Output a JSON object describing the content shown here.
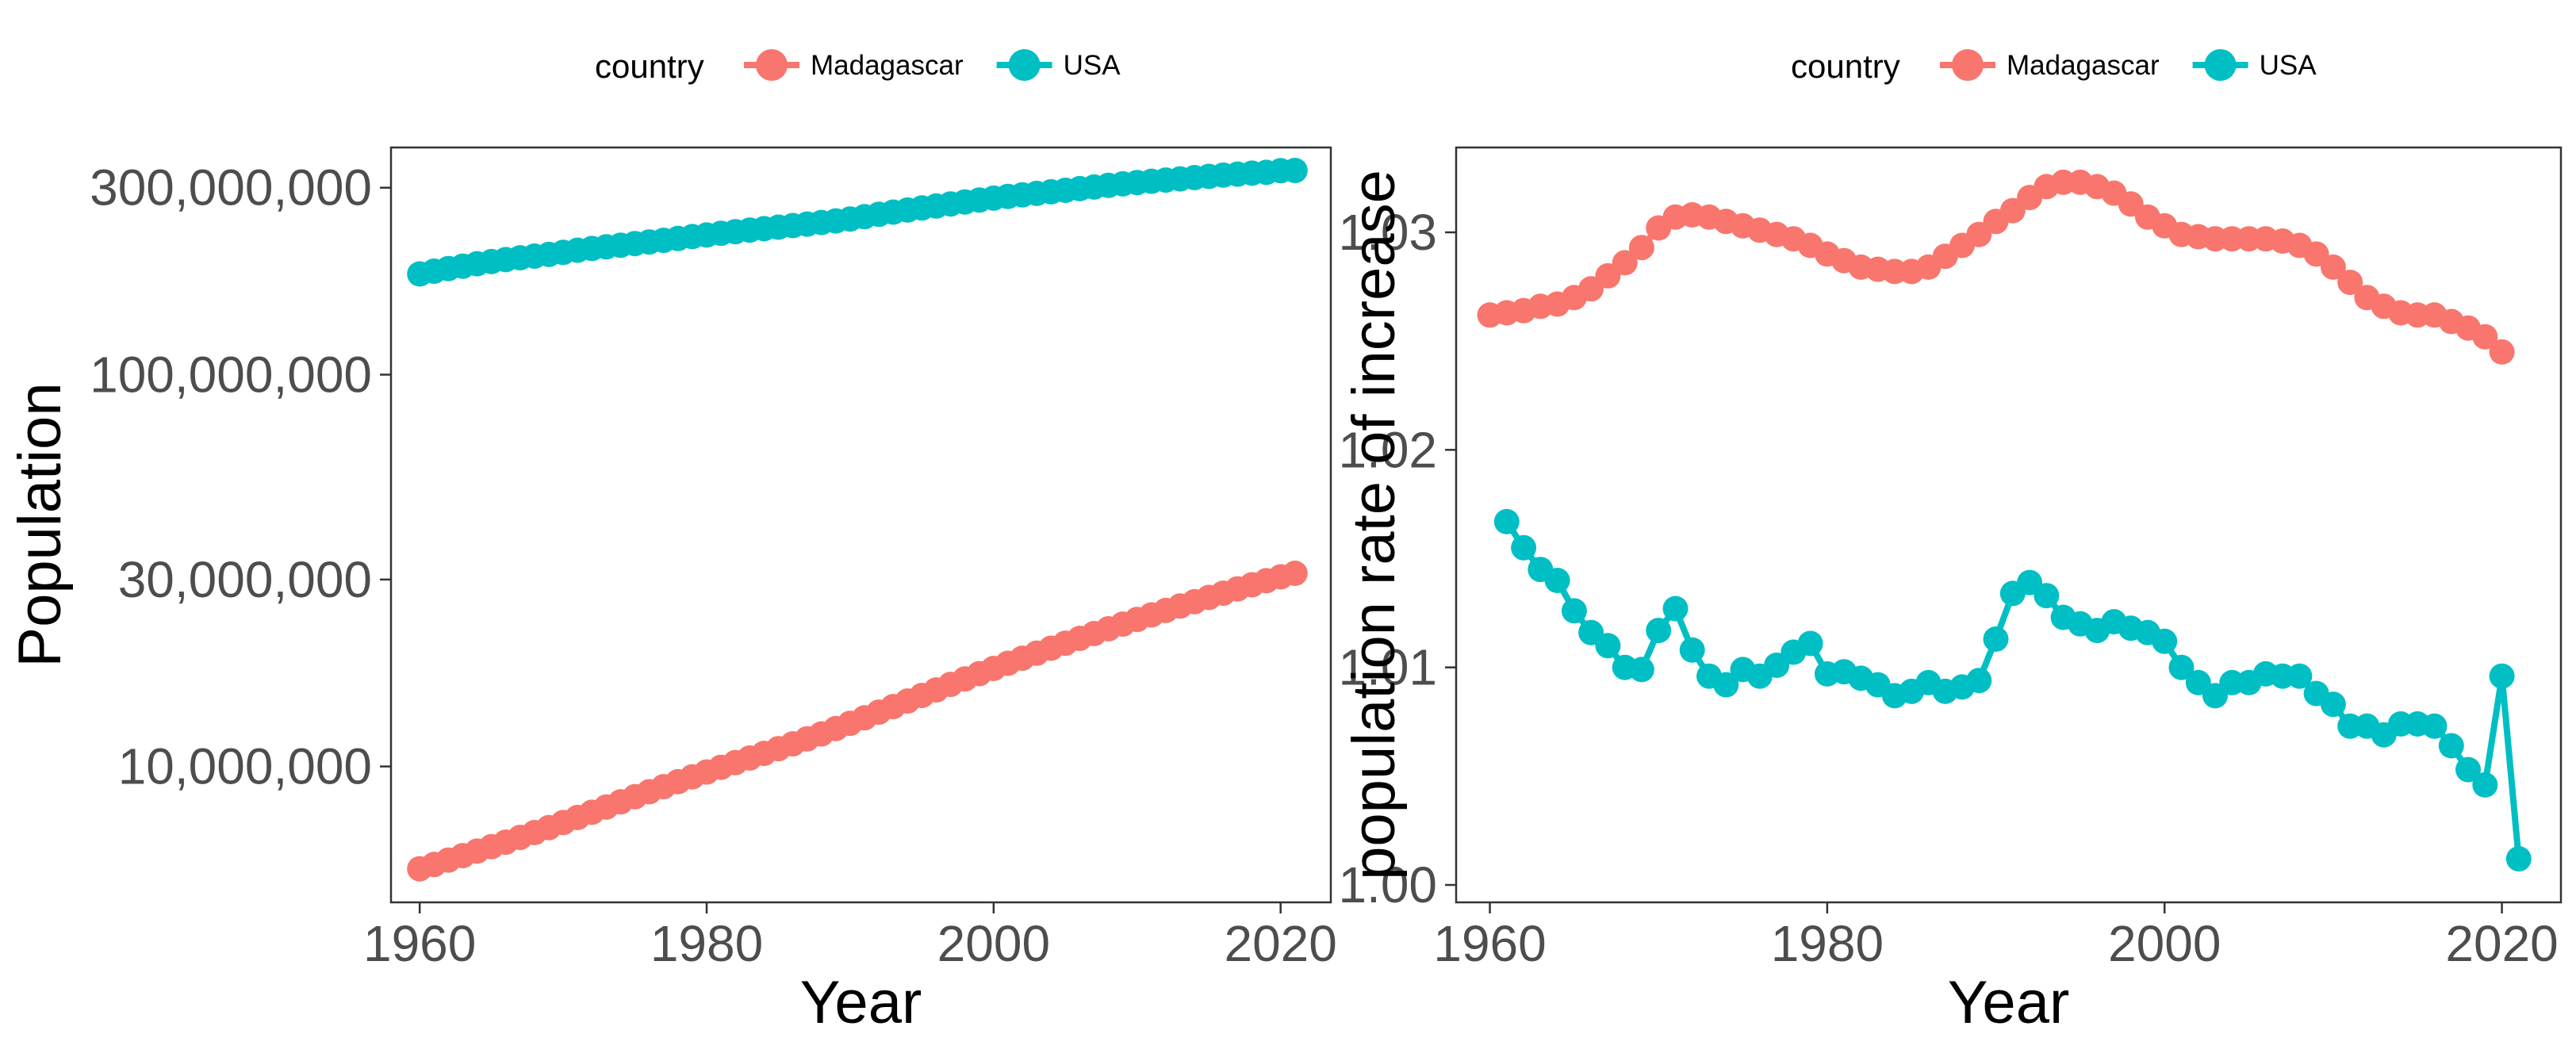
{
  "chart_data": [
    {
      "type": "line",
      "ylabel": "Population",
      "xlabel": "Year",
      "y_scale": "log",
      "ylim": [
        4500000,
        380000000
      ],
      "xlim": [
        1958,
        2023.5
      ],
      "x_ticks": [
        1960,
        1980,
        2000,
        2020
      ],
      "y_ticks": [
        10000000,
        30000000,
        100000000,
        300000000
      ],
      "y_tick_labels": [
        "10,000,000",
        "30,000,000",
        "100,000,000",
        "300,000,000"
      ],
      "lines_drawn": false,
      "legend": {
        "title": "country",
        "position": "top"
      },
      "grid": false,
      "series": [
        {
          "name": "Madagascar",
          "color": "#F8766D",
          "x": [
            1960,
            1961,
            1962,
            1963,
            1964,
            1965,
            1966,
            1967,
            1968,
            1969,
            1970,
            1971,
            1972,
            1973,
            1974,
            1975,
            1976,
            1977,
            1978,
            1979,
            1980,
            1981,
            1982,
            1983,
            1984,
            1985,
            1986,
            1987,
            1988,
            1989,
            1990,
            1991,
            1992,
            1993,
            1994,
            1995,
            1996,
            1997,
            1998,
            1999,
            2000,
            2001,
            2002,
            2003,
            2004,
            2005,
            2006,
            2007,
            2008,
            2009,
            2010,
            2011,
            2012,
            2013,
            2014,
            2015,
            2016,
            2017,
            2018,
            2019,
            2020,
            2021
          ],
          "y": [
            5480000,
            5620000,
            5770000,
            5920000,
            6080000,
            6240000,
            6410000,
            6590000,
            6780000,
            6980000,
            7190000,
            7410000,
            7640000,
            7880000,
            8120000,
            8370000,
            8620000,
            8880000,
            9140000,
            9410000,
            9680000,
            9950000,
            10230000,
            10510000,
            10800000,
            11100000,
            11420000,
            11760000,
            12110000,
            12490000,
            12890000,
            13310000,
            13760000,
            14220000,
            14690000,
            15180000,
            15680000,
            16200000,
            16720000,
            17250000,
            17790000,
            18340000,
            18890000,
            19460000,
            20040000,
            20630000,
            21230000,
            21840000,
            22460000,
            23090000,
            23730000,
            24370000,
            25010000,
            25670000,
            26330000,
            27000000,
            27690000,
            28390000,
            29090000,
            29790000,
            30480000,
            31120000
          ]
        },
        {
          "name": "USA",
          "color": "#00BFC4",
          "x": [
            1960,
            1961,
            1962,
            1963,
            1964,
            1965,
            1966,
            1967,
            1968,
            1969,
            1970,
            1971,
            1972,
            1973,
            1974,
            1975,
            1976,
            1977,
            1978,
            1979,
            1980,
            1981,
            1982,
            1983,
            1984,
            1985,
            1986,
            1987,
            1988,
            1989,
            1990,
            1991,
            1992,
            1993,
            1994,
            1995,
            1996,
            1997,
            1998,
            1999,
            2000,
            2001,
            2002,
            2003,
            2004,
            2005,
            2006,
            2007,
            2008,
            2009,
            2010,
            2011,
            2012,
            2013,
            2014,
            2015,
            2016,
            2017,
            2018,
            2019,
            2020,
            2021
          ],
          "y": [
            180700000,
            183700000,
            186500000,
            189200000,
            191900000,
            194300000,
            196600000,
            198700000,
            200700000,
            202700000,
            205100000,
            207700000,
            209900000,
            211900000,
            213900000,
            216000000,
            218000000,
            220200000,
            222600000,
            225100000,
            227200000,
            229500000,
            231700000,
            233800000,
            235800000,
            237900000,
            240100000,
            242300000,
            244500000,
            246800000,
            249600000,
            253000000,
            256500000,
            259900000,
            263100000,
            266300000,
            269400000,
            272700000,
            275900000,
            279000000,
            282200000,
            285000000,
            287600000,
            290100000,
            292800000,
            295500000,
            298400000,
            301200000,
            304100000,
            306800000,
            309300000,
            311600000,
            313800000,
            315990000,
            318300000,
            320600000,
            322900000,
            324900000,
            326700000,
            328200000,
            331500000,
            331900000
          ]
        }
      ]
    },
    {
      "type": "line",
      "ylabel": "population rate of increase",
      "xlabel": "Year",
      "ylim": [
        0.9992,
        1.0339
      ],
      "xlim": [
        1958,
        2023.5
      ],
      "x_ticks": [
        1960,
        1980,
        2000,
        2020
      ],
      "y_ticks": [
        1.0,
        1.01,
        1.02,
        1.03
      ],
      "y_tick_labels": [
        "1.00",
        "1.01",
        "1.02",
        "1.03"
      ],
      "lines_drawn": true,
      "legend": {
        "title": "country",
        "position": "top"
      },
      "grid": false,
      "series": [
        {
          "name": "Madagascar",
          "color": "#F8766D",
          "x": [
            1960,
            1961,
            1962,
            1963,
            1964,
            1965,
            1966,
            1967,
            1968,
            1969,
            1970,
            1971,
            1972,
            1973,
            1974,
            1975,
            1976,
            1977,
            1978,
            1979,
            1980,
            1981,
            1982,
            1983,
            1984,
            1985,
            1986,
            1987,
            1988,
            1989,
            1990,
            1991,
            1992,
            1993,
            1994,
            1995,
            1996,
            1997,
            1998,
            1999,
            2000,
            2001,
            2002,
            2003,
            2004,
            2005,
            2006,
            2007,
            2008,
            2009,
            2010,
            2011,
            2012,
            2013,
            2014,
            2015,
            2016,
            2017,
            2018,
            2019,
            2020
          ],
          "y": [
            1.0262,
            1.0263,
            1.0264,
            1.0266,
            1.0267,
            1.027,
            1.0274,
            1.028,
            1.0286,
            1.0293,
            1.0302,
            1.0307,
            1.0308,
            1.0307,
            1.0305,
            1.0303,
            1.0301,
            1.0299,
            1.0297,
            1.0294,
            1.029,
            1.0287,
            1.0284,
            1.0283,
            1.0282,
            1.0282,
            1.0284,
            1.0289,
            1.0294,
            1.0299,
            1.0305,
            1.031,
            1.0316,
            1.0321,
            1.0323,
            1.0323,
            1.0321,
            1.0318,
            1.0313,
            1.0307,
            1.0303,
            1.0299,
            1.0298,
            1.0297,
            1.0297,
            1.0297,
            1.0297,
            1.0296,
            1.0294,
            1.029,
            1.0284,
            1.0277,
            1.027,
            1.0266,
            1.0263,
            1.0262,
            1.0262,
            1.0259,
            1.0256,
            1.0252,
            1.0245
          ]
        },
        {
          "name": "USA",
          "color": "#00BFC4",
          "x": [
            1961,
            1962,
            1963,
            1964,
            1965,
            1966,
            1967,
            1968,
            1969,
            1970,
            1971,
            1972,
            1973,
            1974,
            1975,
            1976,
            1977,
            1978,
            1979,
            1980,
            1981,
            1982,
            1983,
            1984,
            1985,
            1986,
            1987,
            1988,
            1989,
            1990,
            1991,
            1992,
            1993,
            1994,
            1995,
            1996,
            1997,
            1998,
            1999,
            2000,
            2001,
            2002,
            2003,
            2004,
            2005,
            2006,
            2007,
            2008,
            2009,
            2010,
            2011,
            2012,
            2013,
            2014,
            2015,
            2016,
            2017,
            2018,
            2019,
            2020,
            2021
          ],
          "y": [
            1.0167,
            1.0155,
            1.0145,
            1.014,
            1.0126,
            1.0116,
            1.011,
            1.01,
            1.0099,
            1.0117,
            1.0127,
            1.0108,
            1.0096,
            1.0092,
            1.0099,
            1.0096,
            1.0101,
            1.0107,
            1.0111,
            1.0097,
            1.0098,
            1.0095,
            1.0092,
            1.0087,
            1.0089,
            1.0093,
            1.0089,
            1.0091,
            1.0094,
            1.0113,
            1.0134,
            1.0139,
            1.0133,
            1.0123,
            1.012,
            1.0117,
            1.0121,
            1.0118,
            1.0116,
            1.0112,
            1.01,
            1.0093,
            1.0087,
            1.0093,
            1.0093,
            1.0097,
            1.0096,
            1.0096,
            1.0088,
            1.0083,
            1.0073,
            1.0073,
            1.0069,
            1.0074,
            1.0074,
            1.0073,
            1.0064,
            1.0053,
            1.0046,
            1.0096,
            1.0012
          ]
        }
      ]
    }
  ]
}
